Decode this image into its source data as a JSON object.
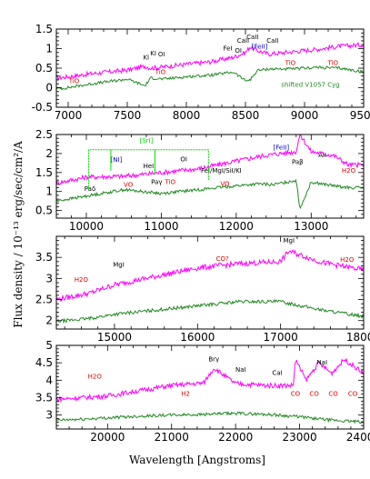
{
  "chart_data": [
    {
      "type": "line",
      "xlim": [
        6900,
        9500
      ],
      "ylim": [
        -0.5,
        1.5
      ],
      "x_ticks": [
        7000,
        7500,
        8000,
        8500,
        9000,
        9500
      ],
      "y_ticks": [
        -0.5,
        0,
        0.5,
        1,
        1.5
      ],
      "series": [
        {
          "color": "#ff00ff",
          "x": [
            6950,
            7200,
            7500,
            7650,
            7700,
            7800,
            8000,
            8200,
            8400,
            8500,
            8540,
            8600,
            8700,
            8900,
            9100,
            9300,
            9500
          ],
          "y": [
            0.26,
            0.36,
            0.45,
            0.55,
            0.5,
            0.53,
            0.6,
            0.66,
            0.78,
            0.9,
            1.05,
            0.95,
            0.86,
            0.92,
            0.98,
            1.06,
            1.1
          ]
        },
        {
          "color": "#228b22",
          "x": [
            6950,
            7200,
            7500,
            7650,
            7700,
            7800,
            8000,
            8200,
            8400,
            8500,
            8540,
            8600,
            8700,
            8900,
            9100,
            9300,
            9500
          ],
          "y": [
            -0.02,
            0.1,
            0.22,
            0.05,
            0.25,
            0.22,
            0.28,
            0.32,
            0.4,
            0.18,
            0.2,
            0.44,
            0.48,
            0.48,
            0.52,
            0.5,
            0.4
          ]
        }
      ],
      "annotations": [
        {
          "text": "TiO",
          "x": 7050,
          "y": 0.12,
          "color": "#e00000"
        },
        {
          "text": "KI",
          "x": 7660,
          "y": 0.72,
          "color": "#000000"
        },
        {
          "text": "KI",
          "x": 7720,
          "y": 0.82,
          "color": "#000000"
        },
        {
          "text": "OI",
          "x": 7790,
          "y": 0.8,
          "color": "#000000"
        },
        {
          "text": "TiO",
          "x": 7780,
          "y": 0.35,
          "color": "#e00000"
        },
        {
          "text": "FeI",
          "x": 8350,
          "y": 0.95,
          "color": "#000000"
        },
        {
          "text": "OI",
          "x": 8440,
          "y": 0.9,
          "color": "#000000"
        },
        {
          "text": "CaII",
          "x": 8480,
          "y": 1.15,
          "color": "#000000"
        },
        {
          "text": "CaII",
          "x": 8560,
          "y": 1.25,
          "color": "#000000"
        },
        {
          "text": "[FeII]",
          "x": 8620,
          "y": 1.0,
          "color": "#0000cc"
        },
        {
          "text": "CaII",
          "x": 8730,
          "y": 1.15,
          "color": "#000000"
        },
        {
          "text": "TiO",
          "x": 8880,
          "y": 0.58,
          "color": "#e00000"
        },
        {
          "text": "TiO",
          "x": 9240,
          "y": 0.58,
          "color": "#e00000"
        },
        {
          "text": "shifted V1057 Cyg",
          "x": 9050,
          "y": 0.02,
          "color": "#228b22"
        }
      ]
    },
    {
      "type": "line",
      "xlim": [
        9600,
        13700
      ],
      "ylim": [
        0.3,
        2.5
      ],
      "x_ticks": [
        10000,
        11000,
        12000,
        13000
      ],
      "y_ticks": [
        0.5,
        1,
        1.5,
        2,
        2.5
      ],
      "series": [
        {
          "color": "#ff00ff",
          "x": [
            9600,
            10000,
            10500,
            11000,
            11500,
            12000,
            12300,
            12500,
            12800,
            12850,
            13000,
            13300,
            13500
          ],
          "y": [
            1.22,
            1.38,
            1.4,
            1.5,
            1.6,
            1.8,
            1.92,
            1.98,
            2.05,
            2.5,
            2.05,
            1.95,
            1.7
          ]
        },
        {
          "color": "#228b22",
          "x": [
            9600,
            10000,
            10500,
            11000,
            11500,
            12000,
            12300,
            12500,
            12800,
            12850,
            13000,
            13300,
            13500
          ],
          "y": [
            0.75,
            0.88,
            1.05,
            0.95,
            1.05,
            1.15,
            1.2,
            1.18,
            1.3,
            0.55,
            1.25,
            1.15,
            1.1
          ]
        }
      ],
      "annotations": [
        {
          "text": "[SrI]",
          "x": 10800,
          "y": 2.28,
          "color": "#00dd00"
        },
        {
          "text": "[NI]",
          "x": 10400,
          "y": 1.78,
          "color": "#0000cc"
        },
        {
          "text": "HeI",
          "x": 10830,
          "y": 1.62,
          "color": "#000000"
        },
        {
          "text": "OI",
          "x": 11300,
          "y": 1.8,
          "color": "#000000"
        },
        {
          "text": "[FeII]",
          "x": 12600,
          "y": 2.1,
          "color": "#0000cc"
        },
        {
          "text": "Paδ",
          "x": 10049,
          "y": 1.02,
          "color": "#000000"
        },
        {
          "text": "VO",
          "x": 10560,
          "y": 1.12,
          "color": "#e00000"
        },
        {
          "text": "Paγ",
          "x": 10938,
          "y": 1.2,
          "color": "#000000"
        },
        {
          "text": "TiO",
          "x": 11120,
          "y": 1.2,
          "color": "#e00000"
        },
        {
          "text": "FeI/MgI/SiI/KI",
          "x": 11800,
          "y": 1.5,
          "color": "#000000"
        },
        {
          "text": "VO",
          "x": 11850,
          "y": 1.15,
          "color": "#e00000"
        },
        {
          "text": "Paβ",
          "x": 12818,
          "y": 1.72,
          "color": "#000000"
        },
        {
          "text": "AlI",
          "x": 13150,
          "y": 1.9,
          "color": "#000000"
        },
        {
          "text": "H2O",
          "x": 13500,
          "y": 1.5,
          "color": "#e00000"
        }
      ]
    },
    {
      "type": "line",
      "xlim": [
        14300,
        18000
      ],
      "ylim": [
        1.8,
        4.0
      ],
      "x_ticks": [
        15000,
        16000,
        17000,
        18000
      ],
      "y_ticks": [
        2,
        2.5,
        3,
        3.5
      ],
      "series": [
        {
          "color": "#ff00ff",
          "x": [
            14300,
            14700,
            15000,
            15500,
            16000,
            16500,
            17000,
            17100,
            17500,
            18000
          ],
          "y": [
            2.5,
            2.65,
            2.85,
            3.05,
            3.25,
            3.35,
            3.4,
            3.65,
            3.38,
            3.2
          ]
        },
        {
          "color": "#228b22",
          "x": [
            14300,
            14700,
            15000,
            15500,
            16000,
            16500,
            17000,
            17500,
            18000
          ],
          "y": [
            1.98,
            2.05,
            2.15,
            2.25,
            2.35,
            2.45,
            2.45,
            2.25,
            2.1
          ]
        }
      ],
      "annotations": [
        {
          "text": "MgI",
          "x": 15050,
          "y": 3.28,
          "color": "#000000"
        },
        {
          "text": "H2O",
          "x": 14600,
          "y": 2.92,
          "color": "#e00000"
        },
        {
          "text": "CO?",
          "x": 16300,
          "y": 3.42,
          "color": "#e00000"
        },
        {
          "text": "MgI",
          "x": 17100,
          "y": 3.85,
          "color": "#000000"
        },
        {
          "text": "H2O",
          "x": 17800,
          "y": 3.4,
          "color": "#e00000"
        }
      ]
    },
    {
      "type": "line",
      "xlim": [
        19200,
        24000
      ],
      "ylim": [
        2.6,
        5.0
      ],
      "x_ticks": [
        20000,
        21000,
        22000,
        23000,
        24000
      ],
      "y_ticks": [
        3,
        3.5,
        4,
        4.5,
        5
      ],
      "series": [
        {
          "color": "#ff00ff",
          "x": [
            19200,
            19600,
            20000,
            20500,
            21000,
            21500,
            21661,
            22000,
            22500,
            22900,
            22935,
            23100,
            23300,
            23500,
            23700,
            24000
          ],
          "y": [
            3.45,
            3.5,
            3.55,
            3.7,
            3.85,
            3.92,
            4.35,
            3.9,
            3.85,
            3.85,
            4.6,
            4.0,
            4.5,
            4.2,
            4.6,
            4.2
          ]
        },
        {
          "color": "#228b22",
          "x": [
            19200,
            19600,
            20000,
            20500,
            21000,
            21500,
            22000,
            22500,
            23000,
            23500,
            24000
          ],
          "y": [
            2.85,
            2.88,
            2.92,
            2.97,
            3.0,
            3.02,
            3.05,
            3.02,
            2.95,
            2.85,
            2.8
          ]
        }
      ],
      "annotations": [
        {
          "text": "H2O",
          "x": 19800,
          "y": 4.05,
          "color": "#e00000"
        },
        {
          "text": "H2",
          "x": 21218,
          "y": 3.55,
          "color": "#e00000"
        },
        {
          "text": "Brγ",
          "x": 21661,
          "y": 4.55,
          "color": "#000000"
        },
        {
          "text": "NaI",
          "x": 22080,
          "y": 4.25,
          "color": "#000000"
        },
        {
          "text": "CaI",
          "x": 22650,
          "y": 4.15,
          "color": "#000000"
        },
        {
          "text": "NaI",
          "x": 23350,
          "y": 4.45,
          "color": "#000000"
        },
        {
          "text": "CO",
          "x": 22935,
          "y": 3.55,
          "color": "#e00000"
        },
        {
          "text": "CO",
          "x": 23227,
          "y": 3.55,
          "color": "#e00000"
        },
        {
          "text": "CO",
          "x": 23525,
          "y": 3.55,
          "color": "#e00000"
        },
        {
          "text": "CO",
          "x": 23830,
          "y": 3.55,
          "color": "#e00000"
        }
      ]
    }
  ],
  "labels": {
    "ylabel": "Flux density / 10⁻¹³ erg/sec/cm²/A",
    "xlabel": "Wavelength [Angstroms]"
  }
}
